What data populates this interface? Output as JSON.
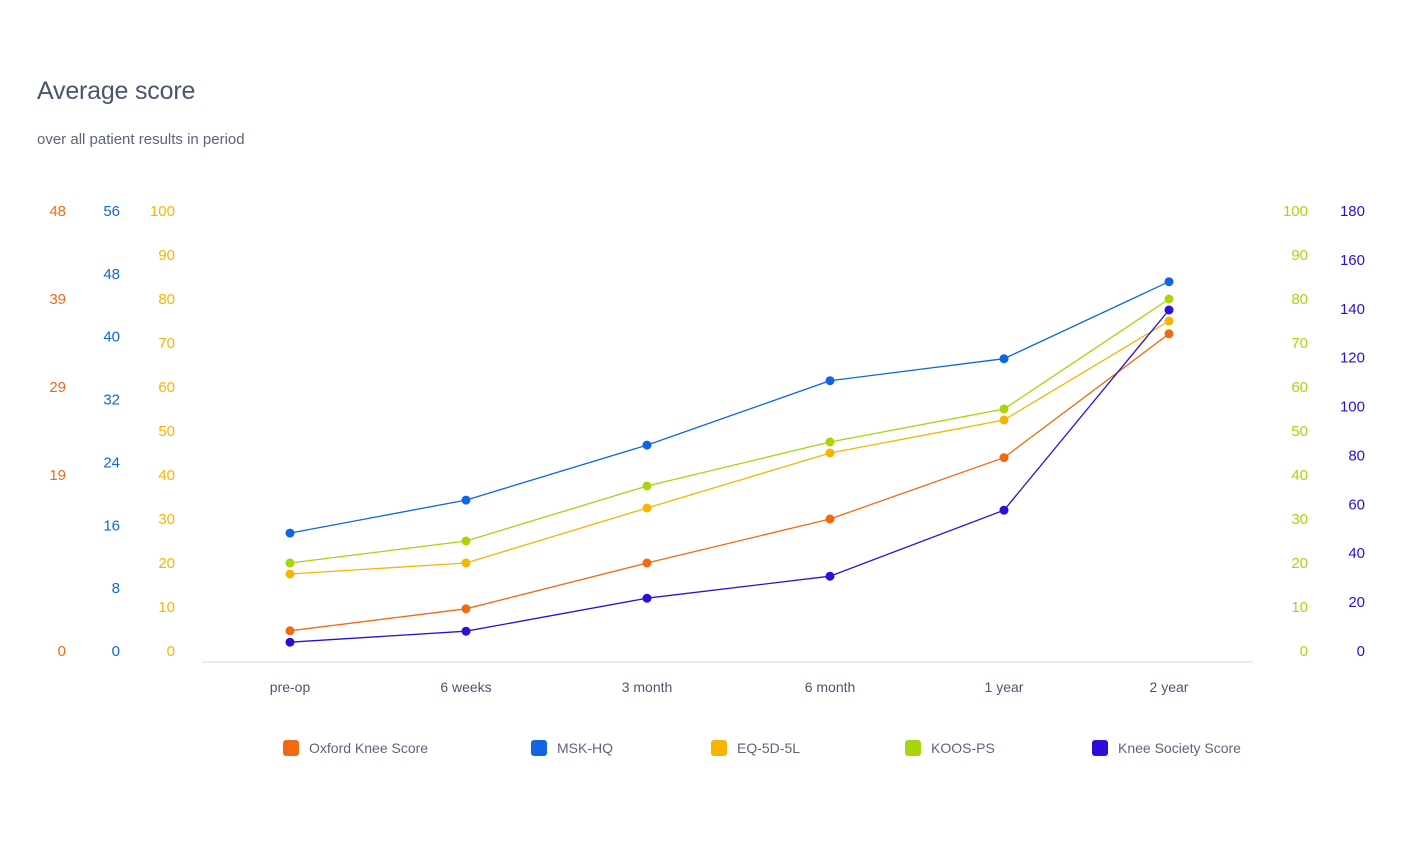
{
  "header": {
    "title": "Average score",
    "subtitle": "over all patient results in period"
  },
  "colors": {
    "oxford": "#f26a10",
    "mskhq": "#0f66e0",
    "eq5d": "#f7b500",
    "koos": "#a6d60a",
    "kss": "#2b0fd6",
    "axis_line": "#d5d8de",
    "x_label": "#4a5570"
  },
  "chart_data": {
    "type": "line",
    "title": "Average score",
    "subtitle": "over all patient results in period",
    "categories": [
      "pre-op",
      "6 weeks",
      "3 month",
      "6 month",
      "1 year",
      "2 year"
    ],
    "axes": [
      {
        "id": "oxford",
        "side": "left",
        "color": "#f26a10",
        "ylim": [
          0,
          48
        ],
        "ticks": [
          "0",
          "19",
          "29",
          "39",
          "48"
        ],
        "tick_values": [
          0,
          19.2,
          28.8,
          38.4,
          48
        ]
      },
      {
        "id": "mskhq",
        "side": "left",
        "color": "#0f66e0",
        "ylim": [
          0,
          56
        ],
        "ticks": [
          "0",
          "8",
          "16",
          "24",
          "32",
          "40",
          "48",
          "56"
        ],
        "tick_values": [
          0,
          8,
          16,
          24,
          32,
          40,
          48,
          56
        ]
      },
      {
        "id": "eq5d",
        "side": "left",
        "color": "#f7b500",
        "ylim": [
          0,
          100
        ],
        "ticks": [
          "0",
          "10",
          "20",
          "30",
          "40",
          "50",
          "60",
          "70",
          "80",
          "90",
          "100"
        ],
        "tick_values": [
          0,
          10,
          20,
          30,
          40,
          50,
          60,
          70,
          80,
          90,
          100
        ]
      },
      {
        "id": "koos",
        "side": "right",
        "color": "#a6d60a",
        "ylim": [
          0,
          100
        ],
        "ticks": [
          "0",
          "10",
          "20",
          "30",
          "40",
          "50",
          "60",
          "70",
          "80",
          "90",
          "100"
        ],
        "tick_values": [
          0,
          10,
          20,
          30,
          40,
          50,
          60,
          70,
          80,
          90,
          100
        ]
      },
      {
        "id": "kss",
        "side": "right",
        "color": "#2b0fd6",
        "ylim": [
          0,
          180
        ],
        "ticks": [
          "0",
          "20",
          "40",
          "60",
          "80",
          "100",
          "120",
          "140",
          "160",
          "180"
        ],
        "tick_values": [
          0,
          20,
          40,
          60,
          80,
          100,
          120,
          140,
          160,
          180
        ]
      }
    ],
    "series": [
      {
        "name": "Oxford Knee Score",
        "axis": "oxford",
        "color": "#f26a10",
        "values": [
          2.2,
          4.6,
          9.6,
          14.4,
          21.1,
          34.6
        ]
      },
      {
        "name": "MSK-HQ",
        "axis": "mskhq",
        "color": "#0f66e0",
        "values": [
          15.0,
          19.2,
          26.2,
          34.4,
          37.2,
          47.0
        ]
      },
      {
        "name": "EQ-5D-5L",
        "axis": "eq5d",
        "color": "#f7b500",
        "values": [
          17.5,
          20.0,
          32.5,
          45.0,
          52.5,
          75.0
        ]
      },
      {
        "name": "KOOS-PS",
        "axis": "koos",
        "color": "#a6d60a",
        "values": [
          20.0,
          25.0,
          37.5,
          47.5,
          55.0,
          80.0
        ]
      },
      {
        "name": "Knee Society Score",
        "axis": "kss",
        "color": "#2b0fd6",
        "values": [
          3.6,
          8.1,
          21.6,
          30.6,
          57.6,
          139.5
        ]
      }
    ],
    "grid": false,
    "legend": "bottom"
  },
  "legend": {
    "items": [
      {
        "label": "Oxford Knee Score",
        "color": "#f26a10"
      },
      {
        "label": "MSK-HQ",
        "color": "#0f66e0"
      },
      {
        "label": "EQ-5D-5L",
        "color": "#f7b500"
      },
      {
        "label": "KOOS-PS",
        "color": "#a6d60a"
      },
      {
        "label": "Knee Society Score",
        "color": "#2b0fd6"
      }
    ]
  }
}
